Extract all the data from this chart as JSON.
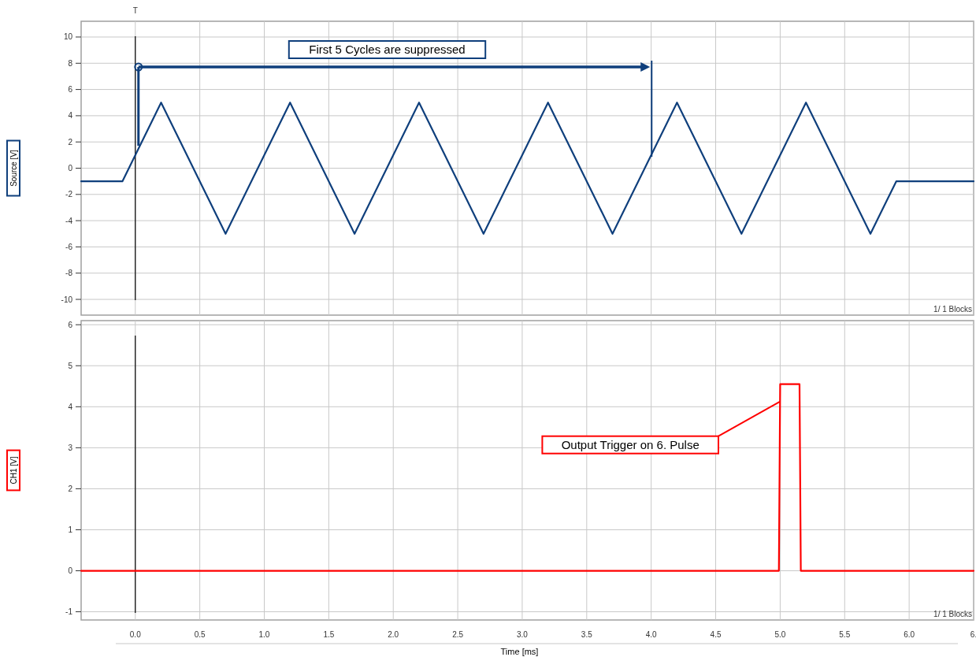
{
  "chart_data": [
    {
      "type": "line",
      "ylabel": "Source [V]",
      "xlim": [
        -0.42,
        6.5
      ],
      "xticks": [
        0,
        0.5,
        1,
        1.5,
        2,
        2.5,
        3,
        3.5,
        4,
        4.5,
        5,
        5.5,
        6,
        6.5
      ],
      "ylim": [
        -11.2,
        11.2
      ],
      "yticks": [
        -10,
        -8,
        -6,
        -4,
        -2,
        0,
        2,
        4,
        6,
        8,
        10
      ],
      "grid": true,
      "tick_labels": "y",
      "series": [
        {
          "color": "#0f3f7c",
          "x": [
            -0.42,
            -0.1,
            0.2,
            0.7,
            1.2,
            1.7,
            2.2,
            2.7,
            3.2,
            3.7,
            4.2,
            4.7,
            5.2,
            5.7,
            5.9,
            6.5
          ],
          "values": [
            -1,
            -1,
            5,
            -5,
            5,
            -5,
            5,
            -5,
            5,
            -5,
            5,
            -5,
            5,
            -5,
            -1,
            -1
          ]
        }
      ],
      "ref_lines": [
        {
          "axis": "x",
          "value": 0,
          "label": "T",
          "color": "#000000"
        }
      ],
      "annotations": [
        "First 5 Cycles are suppressed",
        "1/ 1 Blocks"
      ]
    },
    {
      "type": "line",
      "ylabel": "CH1 [V]",
      "xlabel": "Time [ms]",
      "xlim": [
        -0.42,
        6.5
      ],
      "xticks": [
        {
          "value": 0,
          "label": "0.0"
        },
        {
          "value": 0.5,
          "label": "0.5"
        },
        {
          "value": 1,
          "label": "1.0"
        },
        {
          "value": 1.5,
          "label": "1.5"
        },
        {
          "value": 2,
          "label": "2.0"
        },
        {
          "value": 2.5,
          "label": "2.5"
        },
        {
          "value": 3,
          "label": "3.0"
        },
        {
          "value": 3.5,
          "label": "3.5"
        },
        {
          "value": 4,
          "label": "4.0"
        },
        {
          "value": 4.5,
          "label": "4.5"
        },
        {
          "value": 5,
          "label": "5.0"
        },
        {
          "value": 5.5,
          "label": "5.5"
        },
        {
          "value": 6,
          "label": "6.0"
        },
        {
          "value": 6.5,
          "label": "6."
        }
      ],
      "ylim": [
        -1.2,
        6.1
      ],
      "yticks": [
        -1,
        0,
        1,
        2,
        3,
        4,
        5,
        6
      ],
      "grid": true,
      "series": [
        {
          "color": "#ff0000",
          "x": [
            -0.42,
            4.99,
            5.0,
            5.15,
            5.16,
            6.5
          ],
          "values": [
            0,
            0,
            4.55,
            4.55,
            0,
            0
          ]
        }
      ],
      "ref_lines": [
        {
          "axis": "x",
          "value": 0,
          "color": "#000000"
        }
      ],
      "annotations": [
        "Output Trigger on 6. Pulse",
        "1/ 1 Blocks"
      ]
    }
  ]
}
